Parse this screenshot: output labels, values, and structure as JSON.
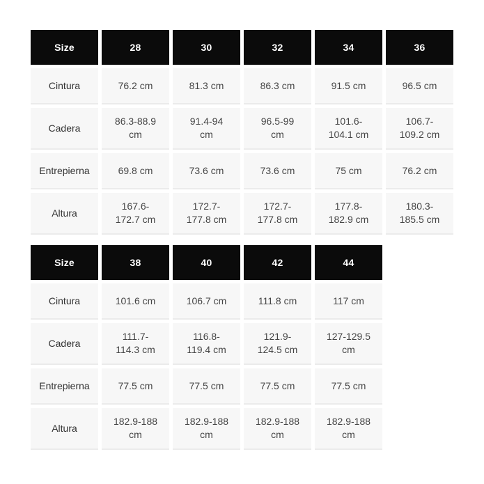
{
  "colors": {
    "page_background": "#ffffff",
    "header_background": "#0b0b0b",
    "header_text": "#ffffff",
    "cell_background": "#f7f7f7",
    "cell_border": "#ebebeb",
    "label_text": "#333333",
    "value_text": "#454545"
  },
  "chart_data": [
    {
      "type": "table",
      "title": "Size chart (sizes 28-36)",
      "columns": [
        "Size",
        "28",
        "30",
        "32",
        "34",
        "36"
      ],
      "rows": [
        {
          "label": "Cintura",
          "values": [
            "76.2 cm",
            "81.3 cm",
            "86.3 cm",
            "91.5 cm",
            "96.5 cm"
          ]
        },
        {
          "label": "Cadera",
          "values": [
            "86.3-88.9 cm",
            "91.4-94 cm",
            "96.5-99 cm",
            "101.6-104.1 cm",
            "106.7-109.2 cm"
          ]
        },
        {
          "label": "Entrepierna",
          "values": [
            "69.8 cm",
            "73.6 cm",
            "73.6 cm",
            "75 cm",
            "76.2 cm"
          ]
        },
        {
          "label": "Altura",
          "values": [
            "167.6-172.7 cm",
            "172.7-177.8 cm",
            "172.7-177.8 cm",
            "177.8-182.9 cm",
            "180.3-185.5 cm"
          ]
        }
      ]
    },
    {
      "type": "table",
      "title": "Size chart (sizes 38-44)",
      "columns": [
        "Size",
        "38",
        "40",
        "42",
        "44"
      ],
      "rows": [
        {
          "label": "Cintura",
          "values": [
            "101.6 cm",
            "106.7 cm",
            "111.8 cm",
            "117 cm"
          ]
        },
        {
          "label": "Cadera",
          "values": [
            "111.7-114.3 cm",
            "116.8-119.4 cm",
            "121.9-124.5 cm",
            "127-129.5 cm"
          ]
        },
        {
          "label": "Entrepierna",
          "values": [
            "77.5 cm",
            "77.5 cm",
            "77.5 cm",
            "77.5 cm"
          ]
        },
        {
          "label": "Altura",
          "values": [
            "182.9-188 cm",
            "182.9-188 cm",
            "182.9-188 cm",
            "182.9-188 cm"
          ]
        }
      ]
    }
  ]
}
